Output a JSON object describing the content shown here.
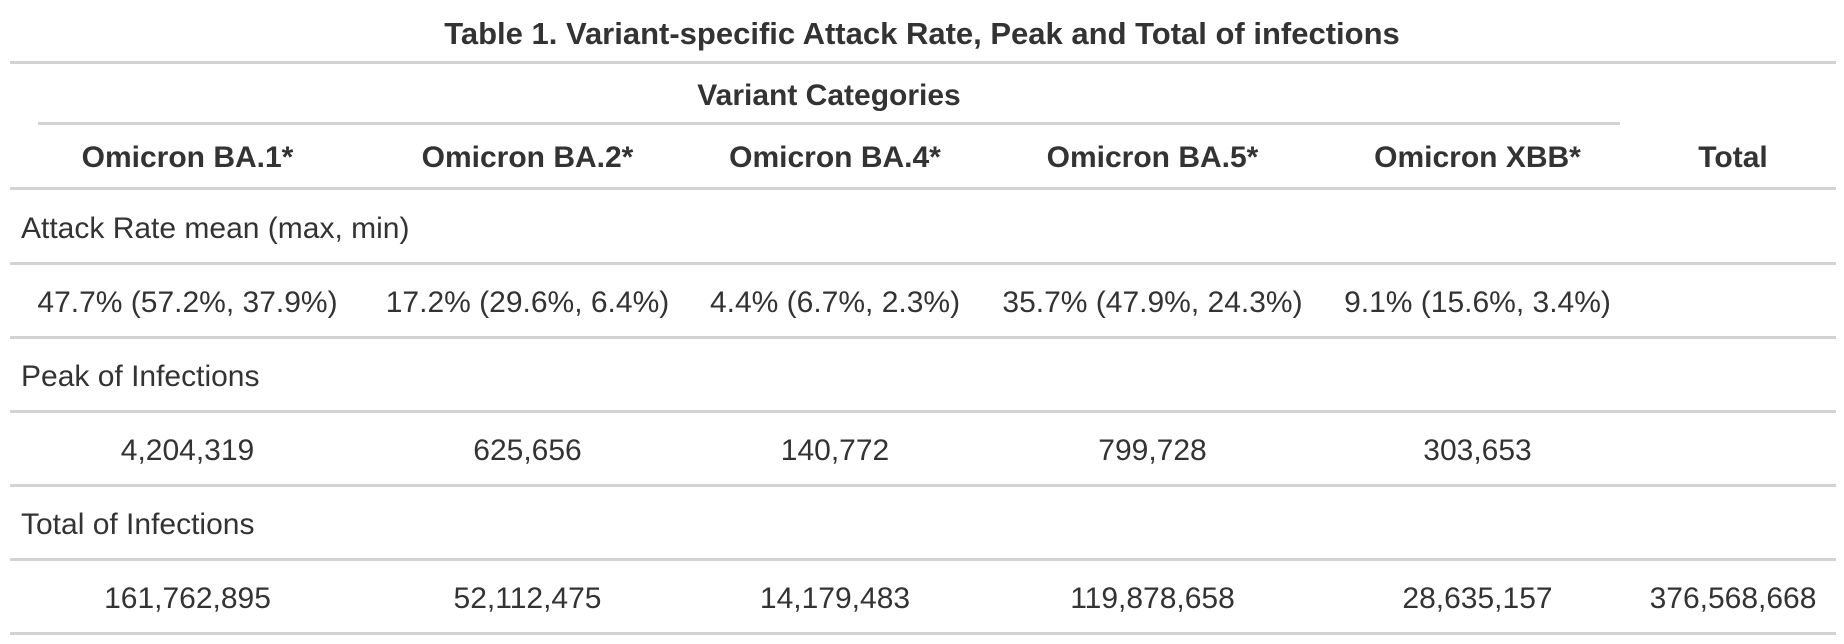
{
  "table": {
    "title": "Table 1. Variant-specific Attack Rate, Peak and Total of infections",
    "spanner": "Variant Categories",
    "columns": [
      "Omicron BA.1*",
      "Omicron BA.2*",
      "Omicron BA.4*",
      "Omicron BA.5*",
      "Omicron XBB*",
      "Total"
    ],
    "groups": [
      {
        "label": "Attack Rate mean (max, min)",
        "values": [
          "47.7% (57.2%, 37.9%)",
          "17.2% (29.6%, 6.4%)",
          "4.4% (6.7%, 2.3%)",
          "35.7% (47.9%, 24.3%)",
          "9.1% (15.6%, 3.4%)",
          ""
        ]
      },
      {
        "label": "Peak of Infections",
        "values": [
          "4,204,319",
          "625,656",
          "140,772",
          "799,728",
          "303,653",
          ""
        ]
      },
      {
        "label": "Total of Infections",
        "values": [
          "161,762,895",
          "52,112,475",
          "14,179,483",
          "119,878,658",
          "28,635,157",
          "376,568,668"
        ]
      }
    ]
  }
}
